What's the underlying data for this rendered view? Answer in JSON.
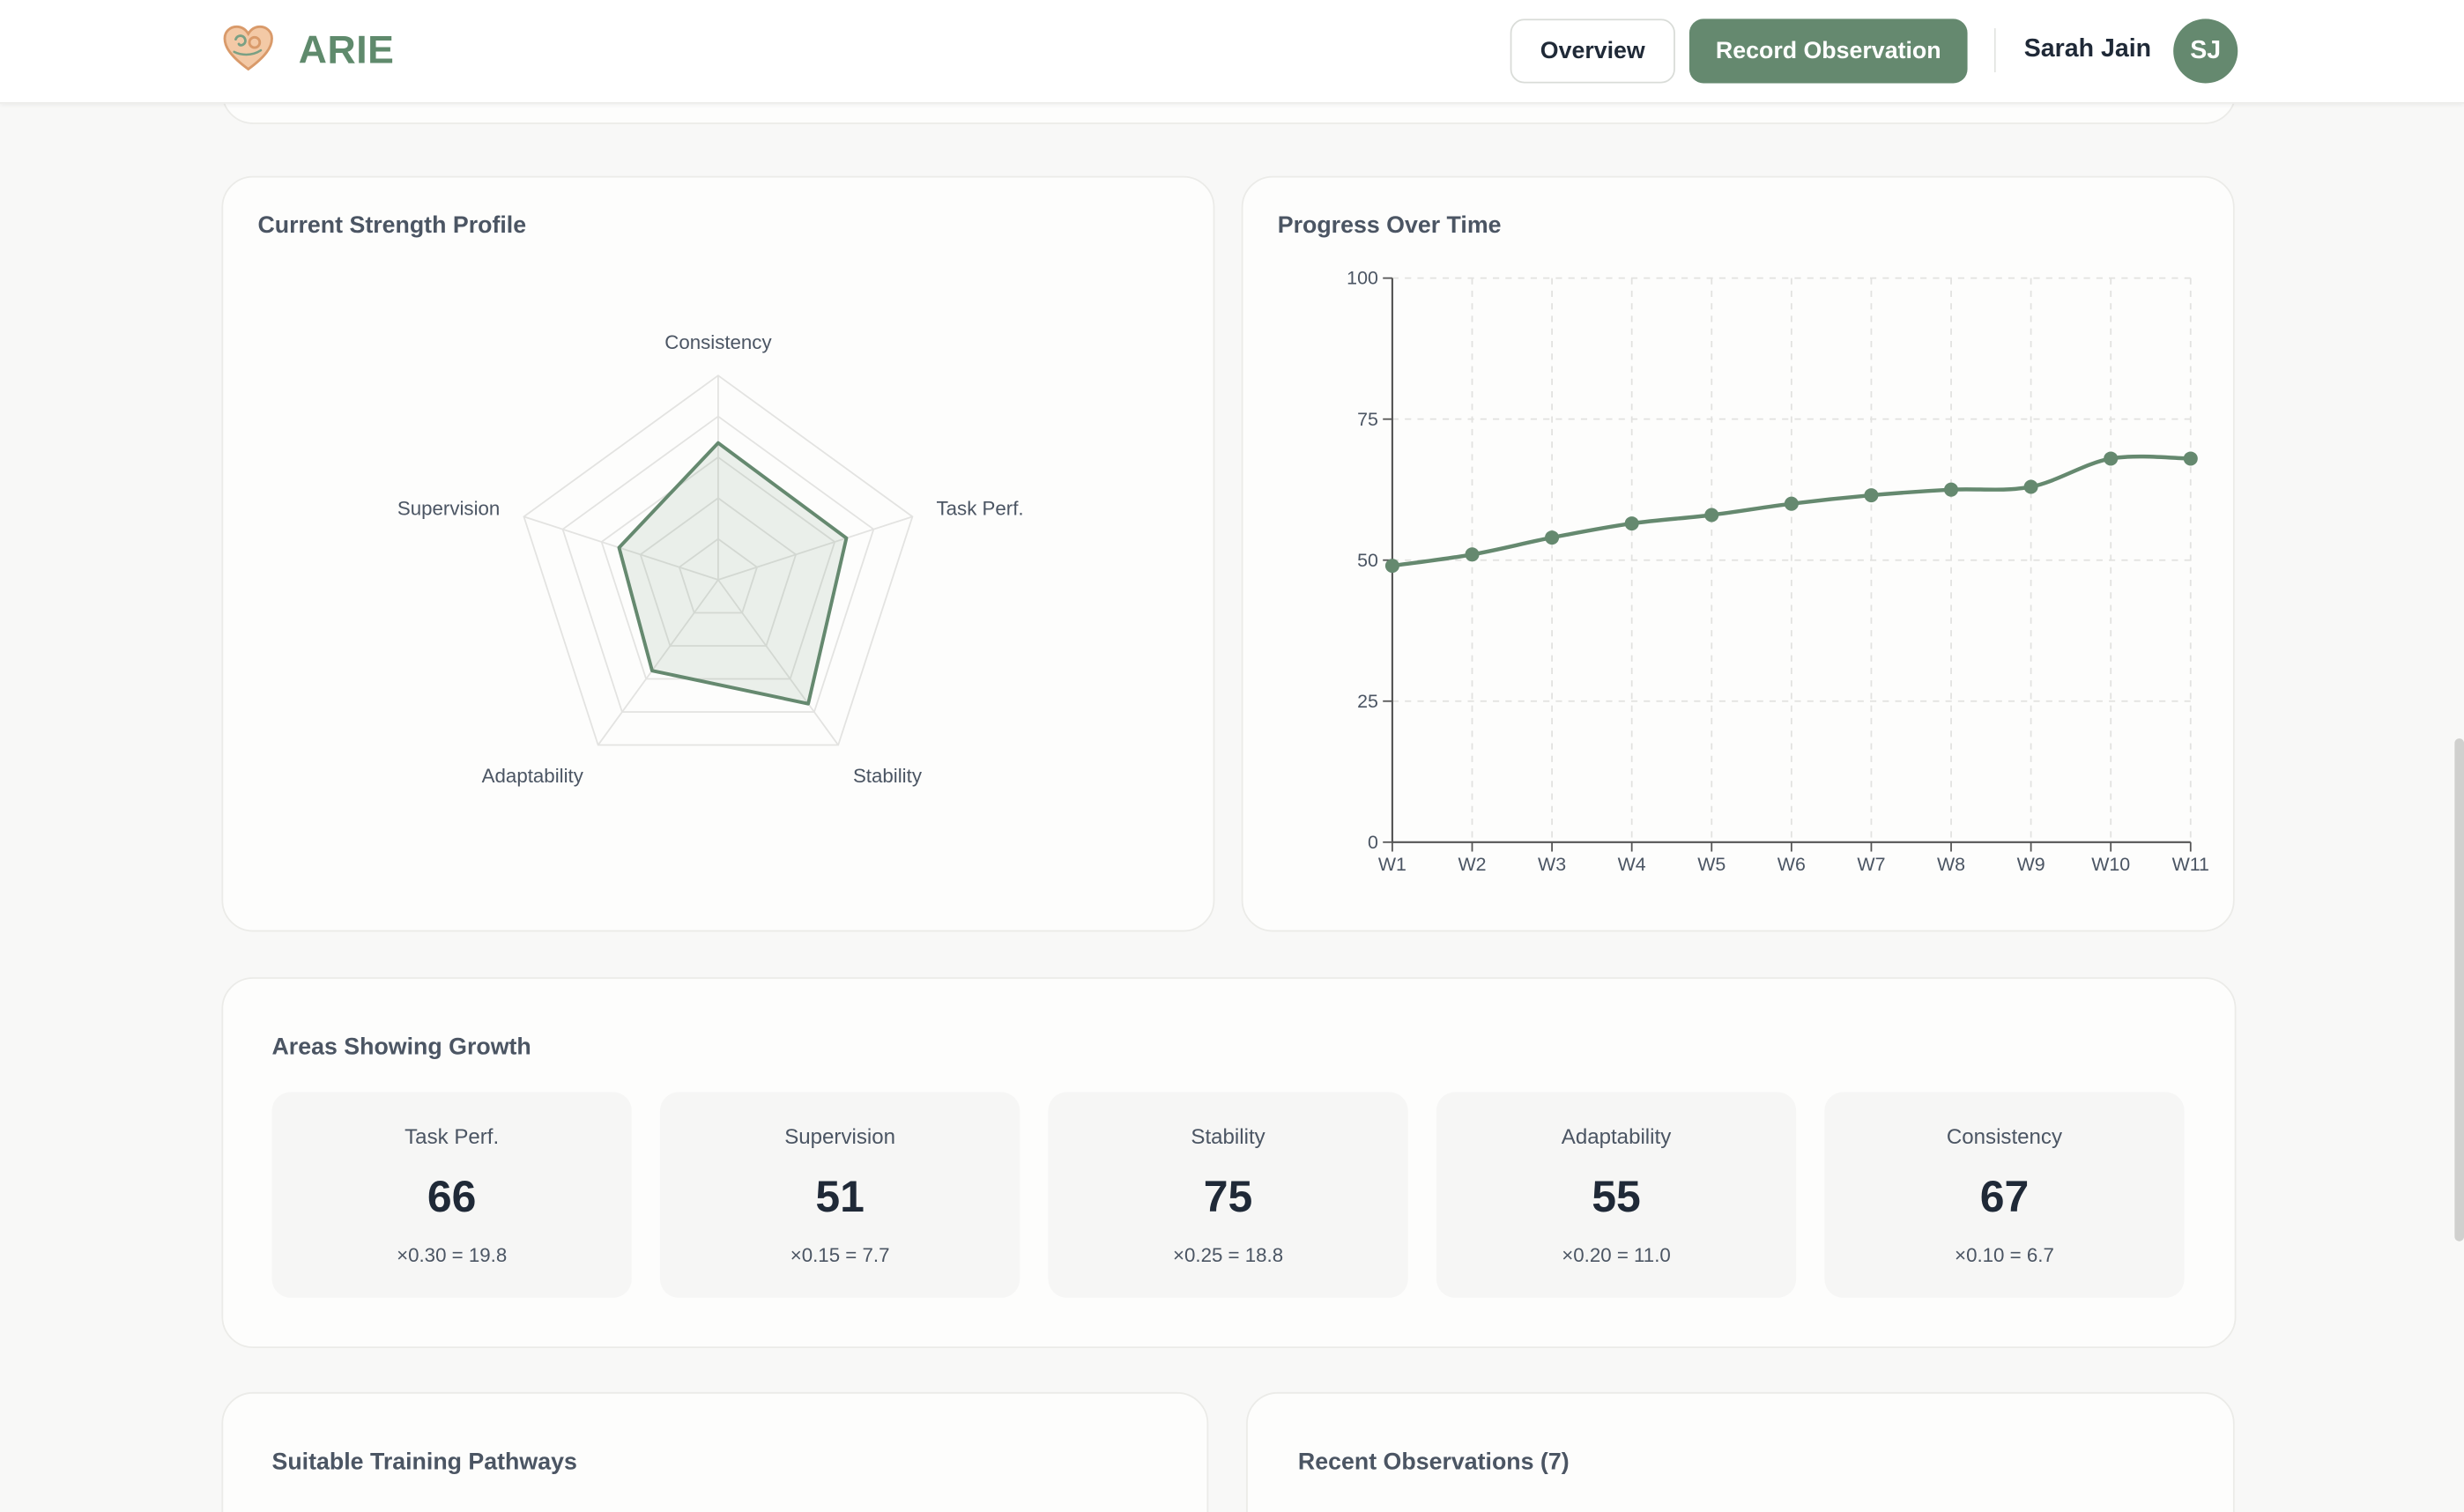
{
  "app": {
    "name": "ARIE"
  },
  "header": {
    "overview_label": "Overview",
    "record_label": "Record Observation",
    "user_name": "Sarah Jain",
    "user_initials": "SJ"
  },
  "strength_profile": {
    "title": "Current Strength Profile",
    "axes": [
      {
        "name": "Consistency",
        "value": 67
      },
      {
        "name": "Task Perf.",
        "value": 66
      },
      {
        "name": "Stability",
        "value": 75
      },
      {
        "name": "Adaptability",
        "value": 55
      },
      {
        "name": "Supervision",
        "value": 51
      }
    ],
    "max": 100
  },
  "progress": {
    "title": "Progress Over Time"
  },
  "chart_data": {
    "type": "line",
    "title": "Progress Over Time",
    "x": [
      "W1",
      "W2",
      "W3",
      "W4",
      "W5",
      "W6",
      "W7",
      "W8",
      "W9",
      "W10",
      "W11"
    ],
    "y": [
      49,
      51,
      54,
      56.5,
      58,
      60,
      61.5,
      62.5,
      63,
      68,
      68
    ],
    "yticks": [
      0,
      25,
      50,
      75,
      100
    ],
    "ylim": [
      0,
      100
    ],
    "grid": true,
    "color": "#65896f"
  },
  "growth": {
    "title": "Areas Showing Growth",
    "metrics": [
      {
        "label": "Task Perf.",
        "value": "66",
        "formula": "×0.30 = 19.8"
      },
      {
        "label": "Supervision",
        "value": "51",
        "formula": "×0.15 = 7.7"
      },
      {
        "label": "Stability",
        "value": "75",
        "formula": "×0.25 = 18.8"
      },
      {
        "label": "Adaptability",
        "value": "55",
        "formula": "×0.20 = 11.0"
      },
      {
        "label": "Consistency",
        "value": "67",
        "formula": "×0.10 = 6.7"
      }
    ]
  },
  "pathways": {
    "title": "Suitable Training Pathways"
  },
  "observations": {
    "title": "Recent Observations (7)"
  },
  "colors": {
    "accent": "#65896f",
    "logo_text": "#5f8a6c",
    "background": "#f8f8f7"
  }
}
